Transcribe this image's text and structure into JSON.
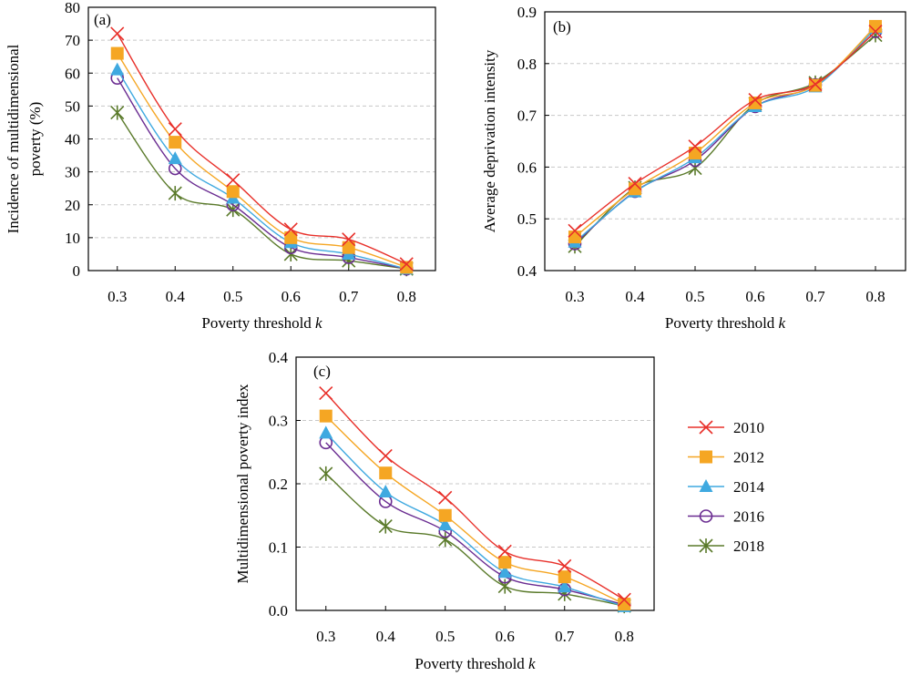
{
  "chart_data": [
    {
      "type": "line",
      "panel_label": "(a)",
      "title": "",
      "xlabel": "Poverty threshold",
      "xlabel_var": "k",
      "ylabel_lines": [
        "Incidence of multidimensional",
        "poverty (%)"
      ],
      "x": [
        0.3,
        0.4,
        0.5,
        0.6,
        0.7,
        0.8
      ],
      "x_tick_labels": [
        "0.3",
        "0.4",
        "0.5",
        "0.6",
        "0.7",
        "0.8"
      ],
      "ylim": [
        0,
        80
      ],
      "y_ticks": [
        0,
        10,
        20,
        30,
        40,
        50,
        60,
        70,
        80
      ],
      "y_tick_labels": [
        "0",
        "10",
        "20",
        "30",
        "40",
        "50",
        "60",
        "70",
        "80"
      ],
      "grid": "horizontal dashed",
      "series": [
        {
          "name": "2010",
          "values": [
            72,
            43,
            27.5,
            12.5,
            9.5,
            2
          ]
        },
        {
          "name": "2012",
          "values": [
            66,
            39,
            24,
            10,
            7,
            1
          ]
        },
        {
          "name": "2014",
          "values": [
            61,
            34,
            22,
            8.5,
            5,
            0.5
          ]
        },
        {
          "name": "2016",
          "values": [
            58.5,
            31,
            20,
            7,
            4,
            0.5
          ]
        },
        {
          "name": "2018",
          "values": [
            48,
            23.5,
            18.5,
            5,
            3,
            0.5
          ]
        }
      ]
    },
    {
      "type": "line",
      "panel_label": "(b)",
      "title": "",
      "xlabel": "Poverty threshold",
      "xlabel_var": "k",
      "ylabel_lines": [
        "Average deprivation intensity"
      ],
      "x": [
        0.3,
        0.4,
        0.5,
        0.6,
        0.7,
        0.8
      ],
      "x_tick_labels": [
        "0.3",
        "0.4",
        "0.5",
        "0.6",
        "0.7",
        "0.8"
      ],
      "ylim": [
        0.4,
        0.9
      ],
      "y_ticks": [
        0.4,
        0.5,
        0.6,
        0.7,
        0.8,
        0.9
      ],
      "y_tick_labels": [
        "0.4",
        "0.5",
        "0.6",
        "0.7",
        "0.8",
        "0.9"
      ],
      "grid": "horizontal dashed",
      "series": [
        {
          "name": "2010",
          "values": [
            0.477,
            0.568,
            0.64,
            0.73,
            0.76,
            0.862
          ]
        },
        {
          "name": "2012",
          "values": [
            0.465,
            0.558,
            0.627,
            0.724,
            0.758,
            0.872
          ]
        },
        {
          "name": "2014",
          "values": [
            0.455,
            0.552,
            0.618,
            0.717,
            0.755,
            0.868
          ]
        },
        {
          "name": "2016",
          "values": [
            0.452,
            0.553,
            0.613,
            0.717,
            0.759,
            0.862
          ]
        },
        {
          "name": "2018",
          "values": [
            0.447,
            0.56,
            0.598,
            0.722,
            0.763,
            0.855
          ]
        }
      ]
    },
    {
      "type": "line",
      "panel_label": "(c)",
      "title": "",
      "xlabel": "Poverty threshold",
      "xlabel_var": "k",
      "ylabel_lines": [
        "Multidimensional poverty index"
      ],
      "x": [
        0.3,
        0.4,
        0.5,
        0.6,
        0.7,
        0.8
      ],
      "x_tick_labels": [
        "0.3",
        "0.4",
        "0.5",
        "0.6",
        "0.7",
        "0.8"
      ],
      "ylim": [
        0,
        0.4
      ],
      "y_ticks": [
        0,
        0.1,
        0.2,
        0.3,
        0.4
      ],
      "y_tick_labels": [
        "0.0",
        "0.1",
        "0.2",
        "0.3",
        "0.4"
      ],
      "grid": "horizontal dashed",
      "series": [
        {
          "name": "2010",
          "values": [
            0.343,
            0.244,
            0.178,
            0.093,
            0.07,
            0.017
          ]
        },
        {
          "name": "2012",
          "values": [
            0.307,
            0.217,
            0.15,
            0.076,
            0.053,
            0.01
          ]
        },
        {
          "name": "2014",
          "values": [
            0.28,
            0.187,
            0.135,
            0.06,
            0.037,
            0.006
          ]
        },
        {
          "name": "2016",
          "values": [
            0.265,
            0.172,
            0.125,
            0.053,
            0.033,
            0.009
          ]
        },
        {
          "name": "2018",
          "values": [
            0.216,
            0.133,
            0.112,
            0.038,
            0.026,
            0.007
          ]
        }
      ]
    }
  ],
  "legend": {
    "placement": "right of panel (c)",
    "items": [
      {
        "name": "2010",
        "color": "#e8302a",
        "marker": "cross-x"
      },
      {
        "name": "2012",
        "color": "#f5a623",
        "marker": "square"
      },
      {
        "name": "2014",
        "color": "#3fa9e0",
        "marker": "triangle"
      },
      {
        "name": "2016",
        "color": "#6a2c91",
        "marker": "open-circle"
      },
      {
        "name": "2018",
        "color": "#5a7a2a",
        "marker": "star-asterisk"
      }
    ]
  },
  "series_styles": [
    {
      "color": "#e8302a",
      "marker": "cross-x"
    },
    {
      "color": "#f5a623",
      "marker": "square"
    },
    {
      "color": "#3fa9e0",
      "marker": "triangle"
    },
    {
      "color": "#6a2c91",
      "marker": "open-circle"
    },
    {
      "color": "#5a7a2a",
      "marker": "star-asterisk"
    }
  ]
}
